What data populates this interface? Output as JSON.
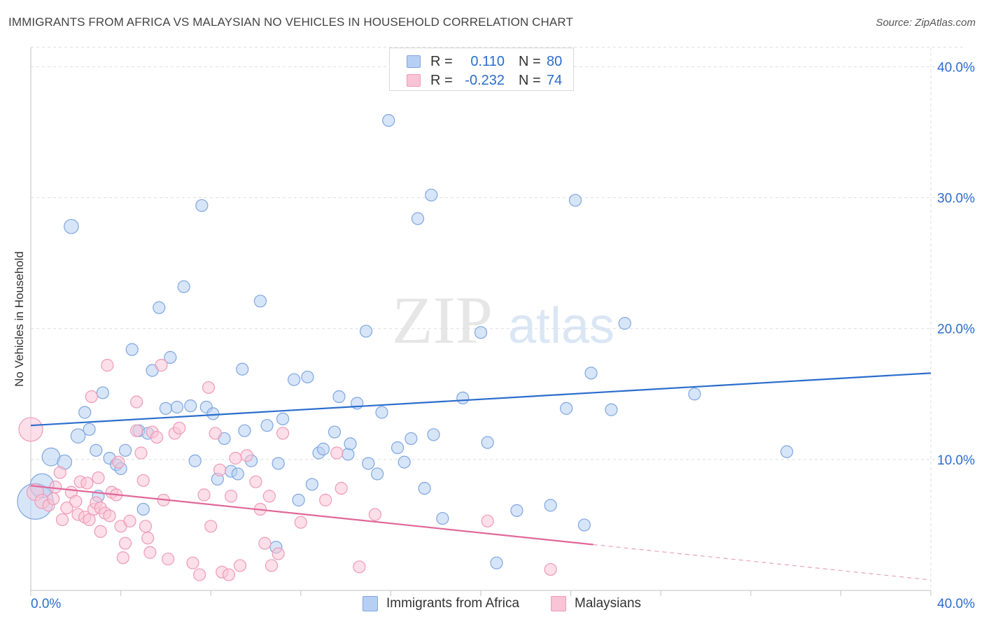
{
  "header": {
    "title": "IMMIGRANTS FROM AFRICA VS MALAYSIAN NO VEHICLES IN HOUSEHOLD CORRELATION CHART",
    "source": "Source: ZipAtlas.com"
  },
  "watermark": {
    "zip": "ZIP",
    "atlas": "atlas"
  },
  "legend": {
    "rows": [
      {
        "r_label": "R =",
        "r_value": "0.110",
        "n_label": "N =",
        "n_value": "80",
        "color": "#7fa6e0"
      },
      {
        "r_label": "R =",
        "r_value": "-0.232",
        "n_label": "N =",
        "n_value": "74",
        "color": "#ef9ab7"
      }
    ]
  },
  "chart_data": {
    "type": "scatter",
    "title": "IMMIGRANTS FROM AFRICA VS MALAYSIAN NO VEHICLES IN HOUSEHOLD CORRELATION CHART",
    "xlabel": "",
    "ylabel": "No Vehicles in Household",
    "xlim": [
      0,
      40
    ],
    "ylim": [
      0,
      42
    ],
    "x_tick_labels": [
      "0.0%",
      "40.0%"
    ],
    "y_ticks": [
      10,
      20,
      30,
      40
    ],
    "y_tick_labels": [
      "10.0%",
      "20.0%",
      "30.0%",
      "40.0%"
    ],
    "grid": true,
    "legend_position": "top-center",
    "series": [
      {
        "name": "Immigrants from Africa",
        "color": "#7fa6e0",
        "fill": "#b7cff3",
        "trend": {
          "x0": 0,
          "y0": 12.6,
          "x1": 40,
          "y1": 16.6,
          "dashed_from": null
        },
        "points": [
          [
            0.2,
            6.8,
            3
          ],
          [
            0.5,
            8.0,
            2
          ],
          [
            0.9,
            10.2,
            1.5
          ],
          [
            1.5,
            9.8,
            1.2
          ],
          [
            1.8,
            27.8,
            1.2
          ],
          [
            2.1,
            11.8,
            1.2
          ],
          [
            2.4,
            13.6,
            1
          ],
          [
            2.6,
            12.3,
            1
          ],
          [
            2.9,
            10.7,
            1
          ],
          [
            3.2,
            15.1,
            1
          ],
          [
            3.5,
            10.1,
            1
          ],
          [
            3.8,
            9.6,
            1
          ],
          [
            4.0,
            9.3,
            1
          ],
          [
            4.2,
            10.7,
            1
          ],
          [
            4.5,
            18.4,
            1
          ],
          [
            4.8,
            12.2,
            1
          ],
          [
            5.2,
            12.0,
            1
          ],
          [
            5.4,
            16.8,
            1
          ],
          [
            5.7,
            21.6,
            1
          ],
          [
            6.0,
            13.9,
            1
          ],
          [
            6.2,
            17.8,
            1
          ],
          [
            6.5,
            14.0,
            1
          ],
          [
            6.8,
            23.2,
            1
          ],
          [
            7.1,
            14.1,
            1
          ],
          [
            7.3,
            9.9,
            1
          ],
          [
            7.6,
            29.4,
            1
          ],
          [
            7.8,
            14.0,
            1
          ],
          [
            8.1,
            13.5,
            1
          ],
          [
            8.3,
            8.5,
            1
          ],
          [
            8.6,
            11.6,
            1
          ],
          [
            8.9,
            9.1,
            1
          ],
          [
            9.2,
            8.9,
            1
          ],
          [
            9.4,
            16.9,
            1
          ],
          [
            9.8,
            9.9,
            1
          ],
          [
            10.2,
            22.1,
            1
          ],
          [
            10.5,
            12.6,
            1
          ],
          [
            10.9,
            3.3,
            1
          ],
          [
            11.0,
            9.7,
            1
          ],
          [
            11.2,
            13.1,
            1
          ],
          [
            11.7,
            16.1,
            1
          ],
          [
            11.9,
            6.9,
            1
          ],
          [
            12.3,
            16.3,
            1
          ],
          [
            12.5,
            8.1,
            1
          ],
          [
            12.8,
            10.5,
            1
          ],
          [
            13.0,
            10.8,
            1
          ],
          [
            13.5,
            12.1,
            1
          ],
          [
            13.7,
            14.8,
            1
          ],
          [
            14.1,
            10.4,
            1
          ],
          [
            14.2,
            11.2,
            1
          ],
          [
            14.5,
            14.3,
            1
          ],
          [
            14.9,
            19.8,
            1
          ],
          [
            15.0,
            9.7,
            1
          ],
          [
            15.4,
            8.9,
            1
          ],
          [
            15.6,
            13.6,
            1
          ],
          [
            15.9,
            35.9,
            1
          ],
          [
            16.3,
            10.9,
            1
          ],
          [
            16.6,
            9.8,
            1
          ],
          [
            16.9,
            11.6,
            1
          ],
          [
            17.2,
            28.4,
            1
          ],
          [
            17.5,
            7.8,
            1
          ],
          [
            17.8,
            30.2,
            1
          ],
          [
            17.9,
            11.9,
            1
          ],
          [
            18.3,
            5.5,
            1
          ],
          [
            19.2,
            14.7,
            1
          ],
          [
            20.0,
            19.7,
            1
          ],
          [
            20.3,
            11.3,
            1
          ],
          [
            20.7,
            2.1,
            1
          ],
          [
            21.6,
            6.1,
            1
          ],
          [
            23.1,
            6.5,
            1
          ],
          [
            23.8,
            13.9,
            1
          ],
          [
            24.2,
            29.8,
            1
          ],
          [
            24.6,
            5.0,
            1
          ],
          [
            24.9,
            16.6,
            1
          ],
          [
            25.8,
            13.8,
            1
          ],
          [
            26.4,
            20.4,
            1
          ],
          [
            29.5,
            15.0,
            1
          ],
          [
            33.6,
            10.6,
            1
          ],
          [
            3.0,
            7.2,
            1
          ],
          [
            5.0,
            6.2,
            1
          ],
          [
            9.5,
            12.2,
            1
          ]
        ]
      },
      {
        "name": "Malaysians",
        "color": "#ef9ab7",
        "fill": "#f9c4d5",
        "trend": {
          "x0": 0,
          "y0": 8.0,
          "x1": 25,
          "y1": 3.5,
          "dashed_to_x": 40,
          "dashed_to_y": 0.8
        },
        "points": [
          [
            0.0,
            12.3,
            2
          ],
          [
            0.2,
            7.5,
            1.4
          ],
          [
            0.5,
            6.8,
            1.2
          ],
          [
            0.8,
            6.5,
            1
          ],
          [
            1.1,
            7.9,
            1
          ],
          [
            1.3,
            9.0,
            1
          ],
          [
            1.4,
            5.4,
            1
          ],
          [
            1.6,
            6.3,
            1
          ],
          [
            1.8,
            7.5,
            1
          ],
          [
            2.0,
            6.8,
            1
          ],
          [
            2.1,
            5.8,
            1
          ],
          [
            2.2,
            8.3,
            1
          ],
          [
            2.4,
            5.6,
            1
          ],
          [
            2.5,
            8.2,
            1
          ],
          [
            2.6,
            5.4,
            1
          ],
          [
            2.7,
            14.8,
            1
          ],
          [
            2.8,
            6.2,
            1
          ],
          [
            2.9,
            6.7,
            1
          ],
          [
            3.1,
            6.3,
            1
          ],
          [
            3.1,
            4.5,
            1
          ],
          [
            3.3,
            5.9,
            1
          ],
          [
            3.4,
            17.2,
            1
          ],
          [
            3.5,
            5.7,
            1
          ],
          [
            3.6,
            7.5,
            1
          ],
          [
            3.8,
            7.3,
            1
          ],
          [
            3.9,
            9.8,
            1
          ],
          [
            4.0,
            4.9,
            1
          ],
          [
            4.1,
            2.5,
            1
          ],
          [
            4.2,
            3.6,
            1
          ],
          [
            4.4,
            5.3,
            1
          ],
          [
            4.7,
            12.2,
            1
          ],
          [
            4.7,
            14.4,
            1
          ],
          [
            4.9,
            10.5,
            1
          ],
          [
            5.0,
            8.4,
            1
          ],
          [
            5.1,
            4.9,
            1
          ],
          [
            5.2,
            4.0,
            1
          ],
          [
            5.3,
            2.9,
            1
          ],
          [
            5.4,
            12.1,
            1
          ],
          [
            5.6,
            11.7,
            1
          ],
          [
            5.8,
            17.2,
            1
          ],
          [
            5.9,
            6.9,
            1
          ],
          [
            6.1,
            2.4,
            1
          ],
          [
            6.4,
            12.0,
            1
          ],
          [
            7.2,
            2.1,
            1
          ],
          [
            7.5,
            1.2,
            1
          ],
          [
            7.7,
            7.3,
            1
          ],
          [
            7.9,
            15.5,
            1
          ],
          [
            8.0,
            4.9,
            1
          ],
          [
            8.2,
            12.0,
            1
          ],
          [
            8.4,
            9.2,
            1
          ],
          [
            8.5,
            1.4,
            1
          ],
          [
            8.8,
            1.2,
            1
          ],
          [
            8.9,
            7.2,
            1
          ],
          [
            9.1,
            10.1,
            1
          ],
          [
            9.3,
            1.9,
            1
          ],
          [
            10.0,
            8.3,
            1
          ],
          [
            10.2,
            6.2,
            1
          ],
          [
            10.4,
            3.6,
            1
          ],
          [
            10.6,
            7.2,
            1
          ],
          [
            10.7,
            1.9,
            1
          ],
          [
            11.0,
            2.8,
            1
          ],
          [
            11.2,
            12.0,
            1
          ],
          [
            13.1,
            6.9,
            1
          ],
          [
            13.6,
            10.5,
            1
          ],
          [
            13.8,
            7.8,
            1
          ],
          [
            14.6,
            1.8,
            1
          ],
          [
            15.3,
            5.8,
            1
          ],
          [
            20.3,
            5.3,
            1
          ],
          [
            23.1,
            1.6,
            1
          ],
          [
            1.0,
            7.0,
            1
          ],
          [
            3.0,
            8.6,
            1
          ],
          [
            6.6,
            12.4,
            1
          ],
          [
            9.6,
            10.3,
            1
          ],
          [
            12.0,
            5.2,
            1
          ]
        ]
      }
    ]
  },
  "bottom_legend": {
    "items": [
      {
        "label": "Immigrants from Africa",
        "color": "#7fa6e0"
      },
      {
        "label": "Malaysians",
        "color": "#ef9ab7"
      }
    ]
  }
}
